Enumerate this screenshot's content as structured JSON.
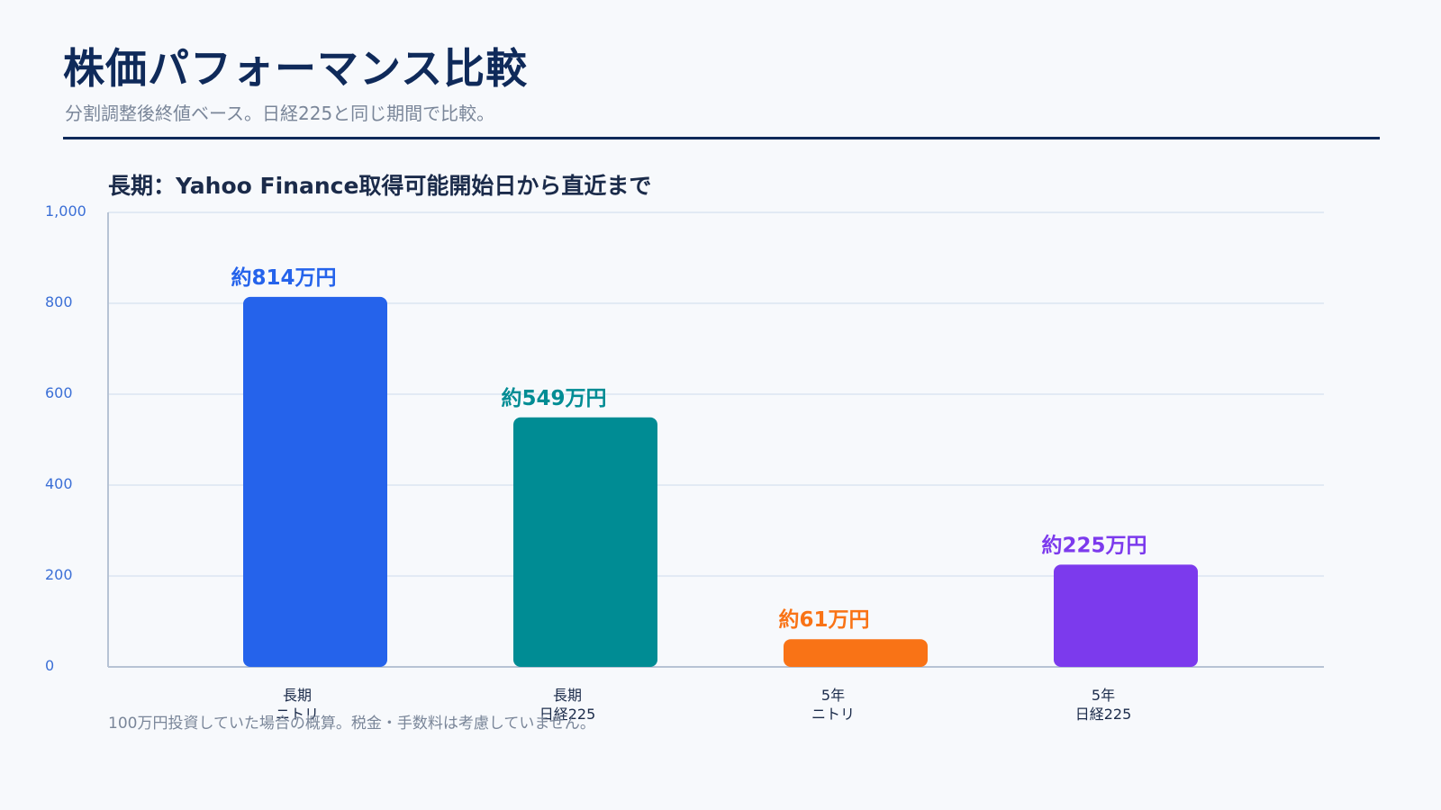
{
  "header": {
    "title": "株価パフォーマンス比較",
    "subtitle": "分割調整後終値ベース。日経225と同じ期間で比較。"
  },
  "footnote": "100万円投資していた場合の概算。税金・手数料は考慮していません。",
  "colors": {
    "title": "#0f2a5a",
    "grid": "#dbe5f2",
    "axis": "#b7c3d4",
    "tick": "#3b6fd6"
  },
  "chart_data": {
    "type": "bar",
    "title": "長期：Yahoo Finance取得可能開始日から直近まで",
    "xlabel": "",
    "ylabel": "",
    "ylim": [
      0,
      1000
    ],
    "yticks": [
      "0",
      "200",
      "400",
      "600",
      "800",
      "1,000"
    ],
    "grid": true,
    "categories": [
      [
        "長期",
        "ニトリ"
      ],
      [
        "長期",
        "日経225"
      ],
      [
        "5年",
        "ニトリ"
      ],
      [
        "5年",
        "日経225"
      ]
    ],
    "values": [
      814,
      549,
      61,
      225
    ],
    "data_labels": [
      "約814万円",
      "約549万円",
      "約61万円",
      "約225万円"
    ],
    "bar_colors": [
      "#2563eb",
      "#008c94",
      "#f97316",
      "#7c3aed"
    ]
  }
}
